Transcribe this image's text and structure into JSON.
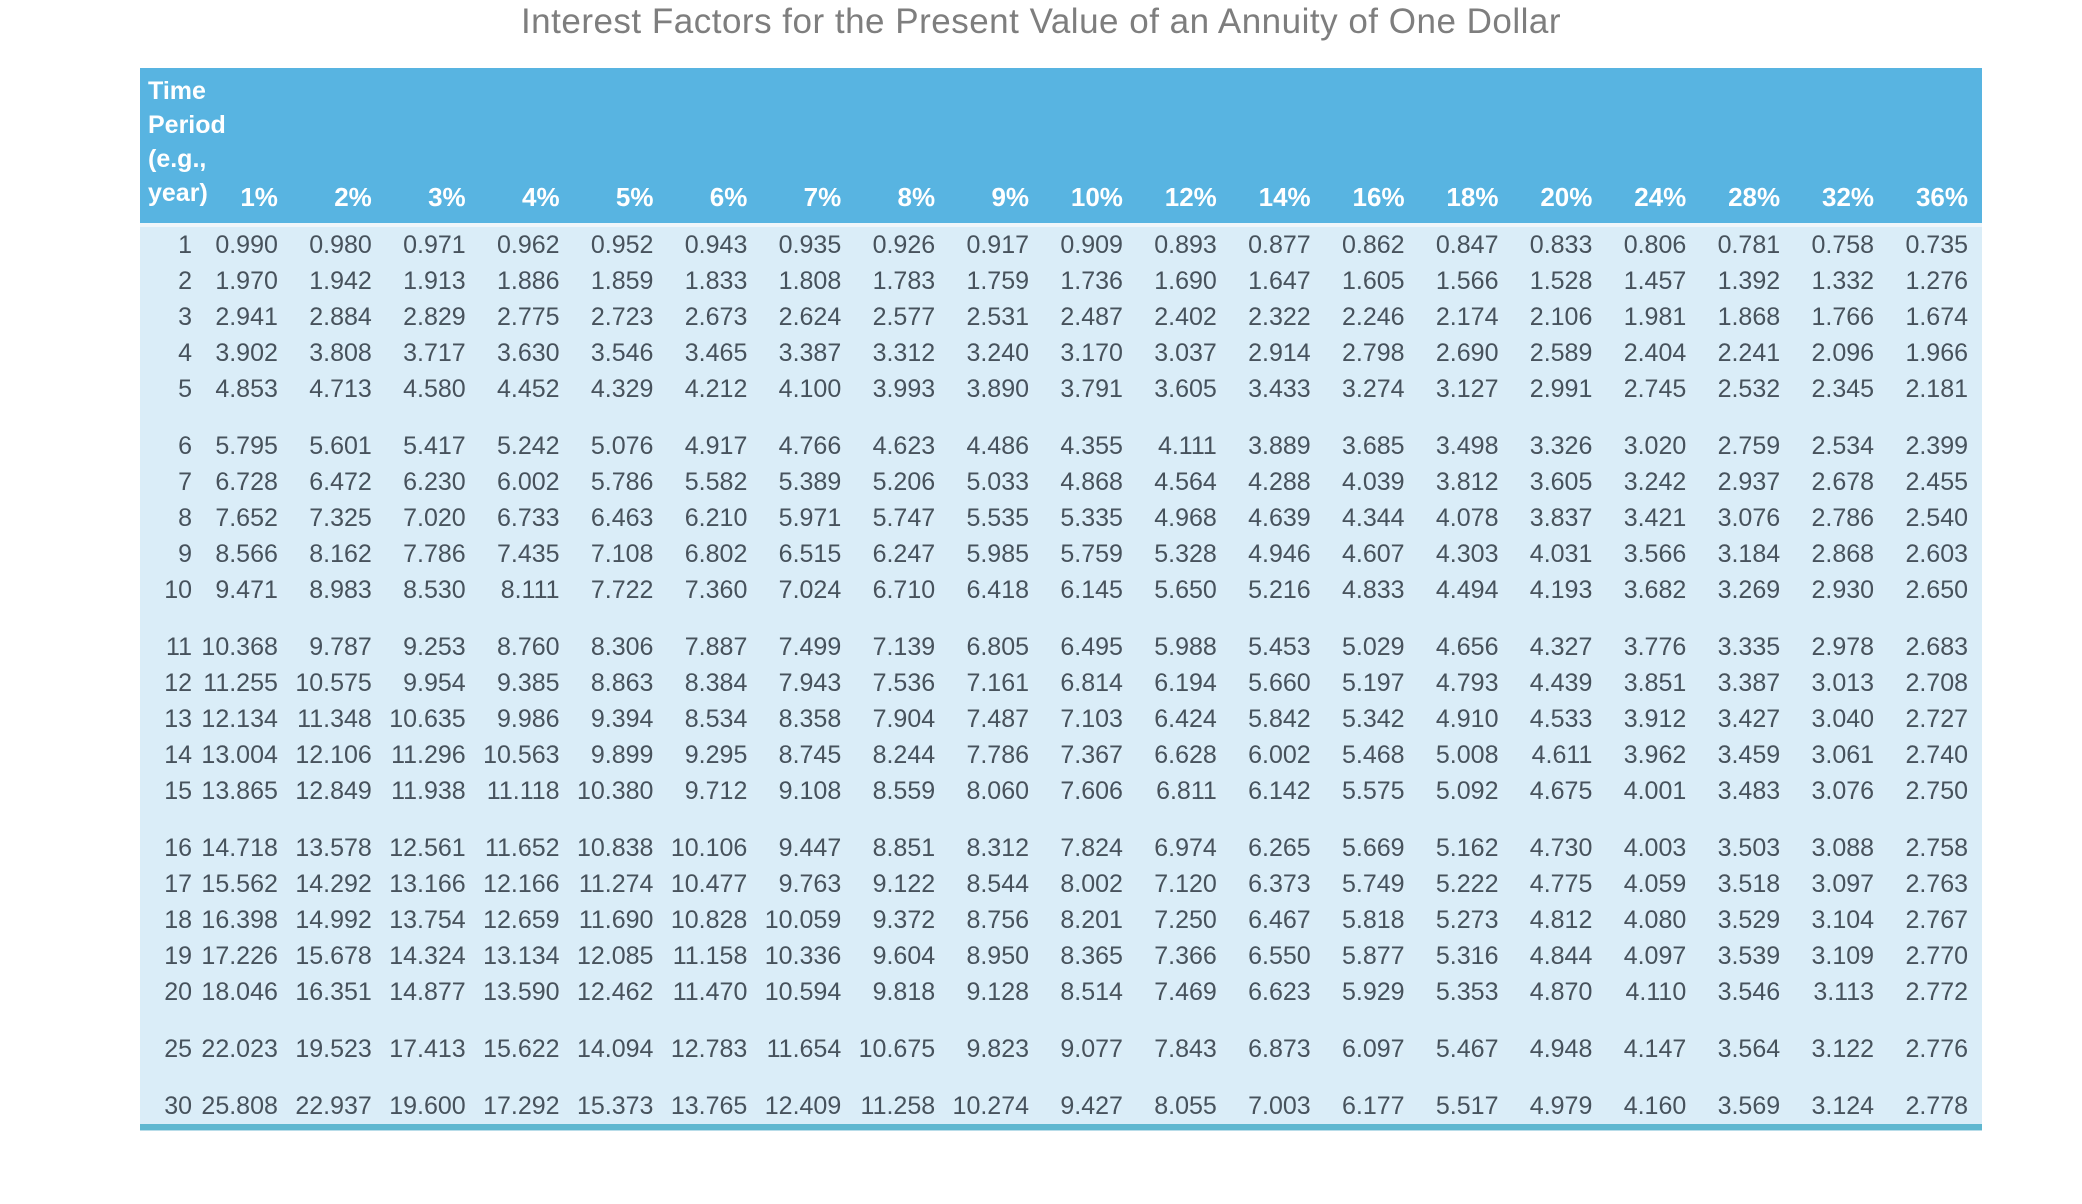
{
  "title": "Interest Factors for the Present Value of an Annuity of One Dollar",
  "colors": {
    "header_bg": "#58b4e1",
    "body_bg": "#daedf8",
    "header_text": "#ffffff",
    "cell_text": "#47525c",
    "title_text": "#7e7e7e",
    "bottom_border": "#5fb7d0"
  },
  "table": {
    "corner_header_lines": [
      "Time",
      "Period",
      "(e.g.,",
      "year)"
    ],
    "rate_headers": [
      "1%",
      "2%",
      "3%",
      "4%",
      "5%",
      "6%",
      "7%",
      "8%",
      "9%",
      "10%",
      "12%",
      "14%",
      "16%",
      "18%",
      "20%",
      "24%",
      "28%",
      "32%",
      "36%"
    ],
    "group_breaks_after": [
      "5",
      "10",
      "15",
      "20",
      "25"
    ],
    "rows": [
      {
        "period": "1",
        "values": [
          "0.990",
          "0.980",
          "0.971",
          "0.962",
          "0.952",
          "0.943",
          "0.935",
          "0.926",
          "0.917",
          "0.909",
          "0.893",
          "0.877",
          "0.862",
          "0.847",
          "0.833",
          "0.806",
          "0.781",
          "0.758",
          "0.735"
        ]
      },
      {
        "period": "2",
        "values": [
          "1.970",
          "1.942",
          "1.913",
          "1.886",
          "1.859",
          "1.833",
          "1.808",
          "1.783",
          "1.759",
          "1.736",
          "1.690",
          "1.647",
          "1.605",
          "1.566",
          "1.528",
          "1.457",
          "1.392",
          "1.332",
          "1.276"
        ]
      },
      {
        "period": "3",
        "values": [
          "2.941",
          "2.884",
          "2.829",
          "2.775",
          "2.723",
          "2.673",
          "2.624",
          "2.577",
          "2.531",
          "2.487",
          "2.402",
          "2.322",
          "2.246",
          "2.174",
          "2.106",
          "1.981",
          "1.868",
          "1.766",
          "1.674"
        ]
      },
      {
        "period": "4",
        "values": [
          "3.902",
          "3.808",
          "3.717",
          "3.630",
          "3.546",
          "3.465",
          "3.387",
          "3.312",
          "3.240",
          "3.170",
          "3.037",
          "2.914",
          "2.798",
          "2.690",
          "2.589",
          "2.404",
          "2.241",
          "2.096",
          "1.966"
        ]
      },
      {
        "period": "5",
        "values": [
          "4.853",
          "4.713",
          "4.580",
          "4.452",
          "4.329",
          "4.212",
          "4.100",
          "3.993",
          "3.890",
          "3.791",
          "3.605",
          "3.433",
          "3.274",
          "3.127",
          "2.991",
          "2.745",
          "2.532",
          "2.345",
          "2.181"
        ]
      },
      {
        "period": "6",
        "values": [
          "5.795",
          "5.601",
          "5.417",
          "5.242",
          "5.076",
          "4.917",
          "4.766",
          "4.623",
          "4.486",
          "4.355",
          "4.111",
          "3.889",
          "3.685",
          "3.498",
          "3.326",
          "3.020",
          "2.759",
          "2.534",
          "2.399"
        ]
      },
      {
        "period": "7",
        "values": [
          "6.728",
          "6.472",
          "6.230",
          "6.002",
          "5.786",
          "5.582",
          "5.389",
          "5.206",
          "5.033",
          "4.868",
          "4.564",
          "4.288",
          "4.039",
          "3.812",
          "3.605",
          "3.242",
          "2.937",
          "2.678",
          "2.455"
        ]
      },
      {
        "period": "8",
        "values": [
          "7.652",
          "7.325",
          "7.020",
          "6.733",
          "6.463",
          "6.210",
          "5.971",
          "5.747",
          "5.535",
          "5.335",
          "4.968",
          "4.639",
          "4.344",
          "4.078",
          "3.837",
          "3.421",
          "3.076",
          "2.786",
          "2.540"
        ]
      },
      {
        "period": "9",
        "values": [
          "8.566",
          "8.162",
          "7.786",
          "7.435",
          "7.108",
          "6.802",
          "6.515",
          "6.247",
          "5.985",
          "5.759",
          "5.328",
          "4.946",
          "4.607",
          "4.303",
          "4.031",
          "3.566",
          "3.184",
          "2.868",
          "2.603"
        ]
      },
      {
        "period": "10",
        "values": [
          "9.471",
          "8.983",
          "8.530",
          "8.111",
          "7.722",
          "7.360",
          "7.024",
          "6.710",
          "6.418",
          "6.145",
          "5.650",
          "5.216",
          "4.833",
          "4.494",
          "4.193",
          "3.682",
          "3.269",
          "2.930",
          "2.650"
        ]
      },
      {
        "period": "11",
        "values": [
          "10.368",
          "9.787",
          "9.253",
          "8.760",
          "8.306",
          "7.887",
          "7.499",
          "7.139",
          "6.805",
          "6.495",
          "5.988",
          "5.453",
          "5.029",
          "4.656",
          "4.327",
          "3.776",
          "3.335",
          "2.978",
          "2.683"
        ]
      },
      {
        "period": "12",
        "values": [
          "11.255",
          "10.575",
          "9.954",
          "9.385",
          "8.863",
          "8.384",
          "7.943",
          "7.536",
          "7.161",
          "6.814",
          "6.194",
          "5.660",
          "5.197",
          "4.793",
          "4.439",
          "3.851",
          "3.387",
          "3.013",
          "2.708"
        ]
      },
      {
        "period": "13",
        "values": [
          "12.134",
          "11.348",
          "10.635",
          "9.986",
          "9.394",
          "8.534",
          "8.358",
          "7.904",
          "7.487",
          "7.103",
          "6.424",
          "5.842",
          "5.342",
          "4.910",
          "4.533",
          "3.912",
          "3.427",
          "3.040",
          "2.727"
        ]
      },
      {
        "period": "14",
        "values": [
          "13.004",
          "12.106",
          "11.296",
          "10.563",
          "9.899",
          "9.295",
          "8.745",
          "8.244",
          "7.786",
          "7.367",
          "6.628",
          "6.002",
          "5.468",
          "5.008",
          "4.611",
          "3.962",
          "3.459",
          "3.061",
          "2.740"
        ]
      },
      {
        "period": "15",
        "values": [
          "13.865",
          "12.849",
          "11.938",
          "11.118",
          "10.380",
          "9.712",
          "9.108",
          "8.559",
          "8.060",
          "7.606",
          "6.811",
          "6.142",
          "5.575",
          "5.092",
          "4.675",
          "4.001",
          "3.483",
          "3.076",
          "2.750"
        ]
      },
      {
        "period": "16",
        "values": [
          "14.718",
          "13.578",
          "12.561",
          "11.652",
          "10.838",
          "10.106",
          "9.447",
          "8.851",
          "8.312",
          "7.824",
          "6.974",
          "6.265",
          "5.669",
          "5.162",
          "4.730",
          "4.003",
          "3.503",
          "3.088",
          "2.758"
        ]
      },
      {
        "period": "17",
        "values": [
          "15.562",
          "14.292",
          "13.166",
          "12.166",
          "11.274",
          "10.477",
          "9.763",
          "9.122",
          "8.544",
          "8.002",
          "7.120",
          "6.373",
          "5.749",
          "5.222",
          "4.775",
          "4.059",
          "3.518",
          "3.097",
          "2.763"
        ]
      },
      {
        "period": "18",
        "values": [
          "16.398",
          "14.992",
          "13.754",
          "12.659",
          "11.690",
          "10.828",
          "10.059",
          "9.372",
          "8.756",
          "8.201",
          "7.250",
          "6.467",
          "5.818",
          "5.273",
          "4.812",
          "4.080",
          "3.529",
          "3.104",
          "2.767"
        ]
      },
      {
        "period": "19",
        "values": [
          "17.226",
          "15.678",
          "14.324",
          "13.134",
          "12.085",
          "11.158",
          "10.336",
          "9.604",
          "8.950",
          "8.365",
          "7.366",
          "6.550",
          "5.877",
          "5.316",
          "4.844",
          "4.097",
          "3.539",
          "3.109",
          "2.770"
        ]
      },
      {
        "period": "20",
        "values": [
          "18.046",
          "16.351",
          "14.877",
          "13.590",
          "12.462",
          "11.470",
          "10.594",
          "9.818",
          "9.128",
          "8.514",
          "7.469",
          "6.623",
          "5.929",
          "5.353",
          "4.870",
          "4.110",
          "3.546",
          "3.113",
          "2.772"
        ]
      },
      {
        "period": "25",
        "values": [
          "22.023",
          "19.523",
          "17.413",
          "15.622",
          "14.094",
          "12.783",
          "11.654",
          "10.675",
          "9.823",
          "9.077",
          "7.843",
          "6.873",
          "6.097",
          "5.467",
          "4.948",
          "4.147",
          "3.564",
          "3.122",
          "2.776"
        ]
      },
      {
        "period": "30",
        "values": [
          "25.808",
          "22.937",
          "19.600",
          "17.292",
          "15.373",
          "13.765",
          "12.409",
          "11.258",
          "10.274",
          "9.427",
          "8.055",
          "7.003",
          "6.177",
          "5.517",
          "4.979",
          "4.160",
          "3.569",
          "3.124",
          "2.778"
        ]
      }
    ]
  }
}
